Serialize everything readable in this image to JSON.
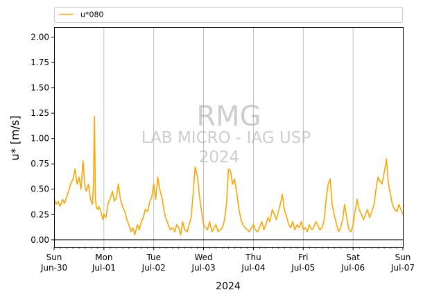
{
  "chart_data": {
    "type": "line",
    "ylabel": "u* [m/s]",
    "xlabel": "2024",
    "ylim": [
      -0.07,
      2.1
    ],
    "xlim": [
      0,
      7
    ],
    "yticks": [
      0.0,
      0.25,
      0.5,
      0.75,
      1.0,
      1.25,
      1.5,
      1.75,
      2.0
    ],
    "ytick_labels": [
      "0.00",
      "0.25",
      "0.50",
      "0.75",
      "1.00",
      "1.25",
      "1.50",
      "1.75",
      "2.00"
    ],
    "xticks": [
      {
        "day": "Sun",
        "date": "Jun-30"
      },
      {
        "day": "Mon",
        "date": "Jul-01"
      },
      {
        "day": "Tue",
        "date": "Jul-02"
      },
      {
        "day": "Wed",
        "date": "Jul-03"
      },
      {
        "day": "Thu",
        "date": "Jul-04"
      },
      {
        "day": "Fri",
        "date": "Jul-05"
      },
      {
        "day": "Sat",
        "date": "Jul-06"
      },
      {
        "day": "Sun",
        "date": "Jul-07"
      }
    ],
    "minor_ticks_per_day": 8,
    "grid": "vertical lines at day boundaries",
    "zero_line": true,
    "legend_position": "top, above plot",
    "watermark": [
      "RMG",
      "LAB MICRO - IAG USP",
      "2024"
    ],
    "series": [
      {
        "name": "u*080",
        "color": "#ffa500",
        "x_unit": "days since Jun-30 00:00",
        "x": [
          0.0,
          0.04,
          0.08,
          0.12,
          0.17,
          0.21,
          0.25,
          0.29,
          0.33,
          0.38,
          0.42,
          0.46,
          0.5,
          0.54,
          0.58,
          0.62,
          0.65,
          0.69,
          0.73,
          0.77,
          0.79,
          0.81,
          0.83,
          0.85,
          0.88,
          0.9,
          0.94,
          0.98,
          1.0,
          1.04,
          1.08,
          1.12,
          1.17,
          1.21,
          1.25,
          1.29,
          1.33,
          1.38,
          1.42,
          1.46,
          1.5,
          1.54,
          1.58,
          1.62,
          1.67,
          1.71,
          1.75,
          1.79,
          1.83,
          1.88,
          1.92,
          1.96,
          2.0,
          2.04,
          2.08,
          2.12,
          2.17,
          2.21,
          2.25,
          2.29,
          2.33,
          2.38,
          2.42,
          2.46,
          2.5,
          2.54,
          2.58,
          2.62,
          2.67,
          2.71,
          2.75,
          2.79,
          2.83,
          2.88,
          2.92,
          2.96,
          3.0,
          3.04,
          3.08,
          3.12,
          3.17,
          3.21,
          3.25,
          3.29,
          3.33,
          3.38,
          3.42,
          3.46,
          3.5,
          3.54,
          3.58,
          3.62,
          3.67,
          3.71,
          3.75,
          3.79,
          3.83,
          3.88,
          3.92,
          3.96,
          4.0,
          4.04,
          4.08,
          4.12,
          4.17,
          4.21,
          4.25,
          4.29,
          4.33,
          4.38,
          4.42,
          4.46,
          4.5,
          4.54,
          4.58,
          4.62,
          4.67,
          4.71,
          4.75,
          4.79,
          4.83,
          4.88,
          4.92,
          4.96,
          5.0,
          5.04,
          5.08,
          5.12,
          5.17,
          5.21,
          5.25,
          5.29,
          5.33,
          5.38,
          5.42,
          5.46,
          5.5,
          5.54,
          5.58,
          5.62,
          5.67,
          5.71,
          5.75,
          5.79,
          5.83,
          5.88,
          5.92,
          5.96,
          6.0,
          6.04,
          6.08,
          6.12,
          6.17,
          6.21,
          6.25,
          6.29,
          6.33,
          6.38,
          6.42,
          6.46,
          6.5,
          6.54,
          6.58,
          6.62,
          6.67,
          6.71,
          6.75,
          6.79,
          6.83,
          6.88,
          6.92,
          6.96,
          7.0
        ],
        "y": [
          0.4,
          0.35,
          0.38,
          0.33,
          0.4,
          0.36,
          0.42,
          0.48,
          0.55,
          0.6,
          0.7,
          0.55,
          0.62,
          0.5,
          0.78,
          0.52,
          0.48,
          0.55,
          0.4,
          0.35,
          0.55,
          1.22,
          0.4,
          0.32,
          0.3,
          0.33,
          0.28,
          0.2,
          0.25,
          0.22,
          0.35,
          0.4,
          0.48,
          0.38,
          0.42,
          0.55,
          0.4,
          0.32,
          0.28,
          0.2,
          0.15,
          0.08,
          0.12,
          0.05,
          0.15,
          0.1,
          0.18,
          0.22,
          0.3,
          0.28,
          0.38,
          0.42,
          0.55,
          0.4,
          0.62,
          0.5,
          0.4,
          0.28,
          0.2,
          0.15,
          0.1,
          0.12,
          0.08,
          0.15,
          0.12,
          0.05,
          0.18,
          0.1,
          0.08,
          0.15,
          0.22,
          0.45,
          0.72,
          0.62,
          0.42,
          0.28,
          0.15,
          0.12,
          0.1,
          0.18,
          0.08,
          0.12,
          0.15,
          0.08,
          0.1,
          0.12,
          0.2,
          0.35,
          0.7,
          0.68,
          0.55,
          0.6,
          0.45,
          0.3,
          0.2,
          0.15,
          0.12,
          0.1,
          0.08,
          0.12,
          0.15,
          0.1,
          0.08,
          0.12,
          0.18,
          0.1,
          0.15,
          0.22,
          0.18,
          0.3,
          0.25,
          0.2,
          0.28,
          0.35,
          0.45,
          0.3,
          0.22,
          0.15,
          0.12,
          0.18,
          0.1,
          0.15,
          0.12,
          0.18,
          0.1,
          0.12,
          0.08,
          0.15,
          0.1,
          0.12,
          0.18,
          0.15,
          0.1,
          0.12,
          0.2,
          0.4,
          0.55,
          0.6,
          0.35,
          0.25,
          0.15,
          0.08,
          0.12,
          0.2,
          0.35,
          0.2,
          0.1,
          0.08,
          0.15,
          0.28,
          0.4,
          0.3,
          0.25,
          0.2,
          0.25,
          0.3,
          0.22,
          0.28,
          0.35,
          0.5,
          0.62,
          0.58,
          0.55,
          0.65,
          0.8,
          0.55,
          0.45,
          0.35,
          0.3,
          0.28,
          0.35,
          0.3,
          0.25
        ]
      }
    ]
  }
}
